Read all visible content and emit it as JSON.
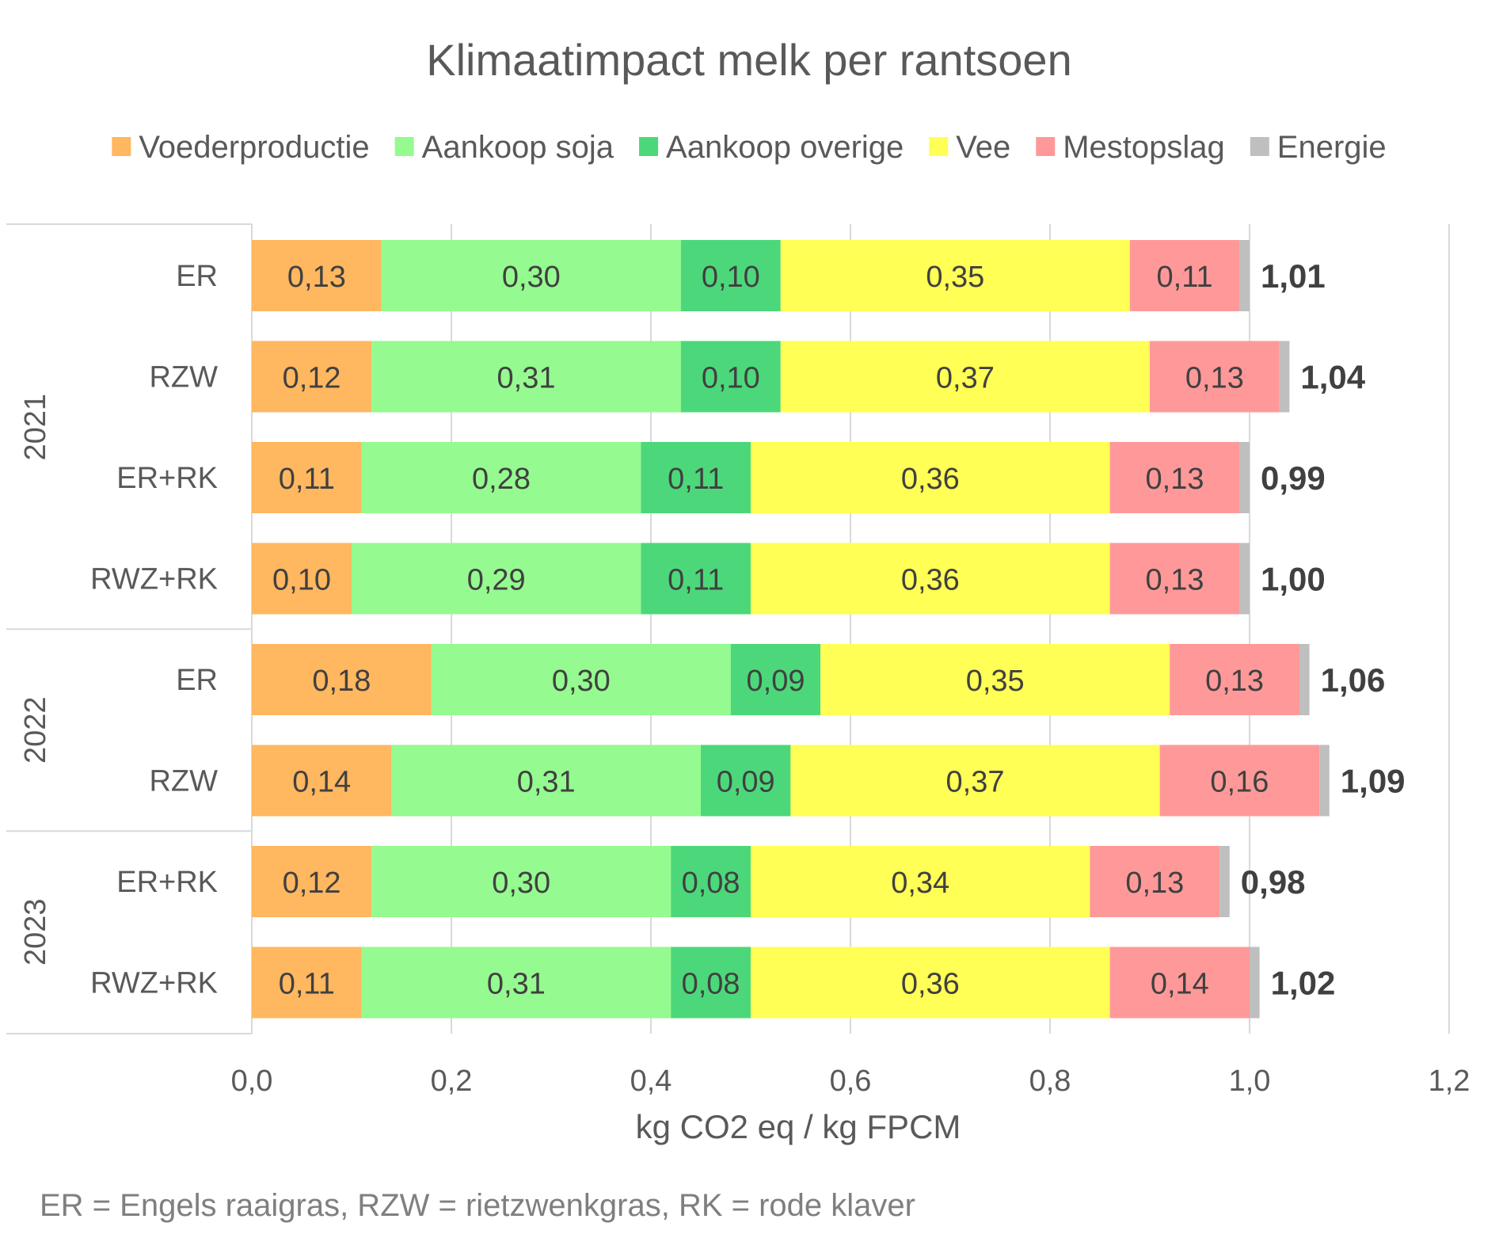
{
  "chart_data": {
    "type": "bar",
    "orientation": "horizontal",
    "stacked": true,
    "title": "Klimaatimpact melk per rantsoen",
    "xlabel": "kg CO2 eq / kg FPCM",
    "ylabel": "",
    "xlim": [
      0,
      1.2
    ],
    "xticks": [
      "0,0",
      "0,2",
      "0,4",
      "0,6",
      "0,8",
      "1,0",
      "1,2"
    ],
    "grid": "vertical",
    "legend_position": "top",
    "groups": [
      {
        "label": "2021",
        "categories": [
          "ER",
          "RZW",
          "ER+RK",
          "RWZ+RK"
        ]
      },
      {
        "label": "2022",
        "categories": [
          "ER",
          "RZW"
        ]
      },
      {
        "label": "2023",
        "categories": [
          "ER+RK",
          "RWZ+RK"
        ]
      }
    ],
    "categories": [
      "2021 ER",
      "2021 RZW",
      "2021 ER+RK",
      "2021 RWZ+RK",
      "2022 ER",
      "2022 RZW",
      "2023 ER+RK",
      "2023 RWZ+RK"
    ],
    "series": [
      {
        "name": "Voederproductie",
        "color": "#FFB760",
        "values": [
          0.13,
          0.12,
          0.11,
          0.1,
          0.18,
          0.14,
          0.12,
          0.11
        ],
        "labels": [
          "0,13",
          "0,12",
          "0,11",
          "0,10",
          "0,18",
          "0,14",
          "0,12",
          "0,11"
        ]
      },
      {
        "name": "Aankoop soja",
        "color": "#95FA8F",
        "values": [
          0.3,
          0.31,
          0.28,
          0.29,
          0.3,
          0.31,
          0.3,
          0.31
        ],
        "labels": [
          "0,30",
          "0,31",
          "0,28",
          "0,29",
          "0,30",
          "0,31",
          "0,30",
          "0,31"
        ]
      },
      {
        "name": "Aankoop overige",
        "color": "#4CD87A",
        "values": [
          0.1,
          0.1,
          0.11,
          0.11,
          0.09,
          0.09,
          0.08,
          0.08
        ],
        "labels": [
          "0,10",
          "0,10",
          "0,11",
          "0,11",
          "0,09",
          "0,09",
          "0,08",
          "0,08"
        ]
      },
      {
        "name": "Vee",
        "color": "#FFFF55",
        "values": [
          0.35,
          0.37,
          0.36,
          0.36,
          0.35,
          0.37,
          0.34,
          0.36
        ],
        "labels": [
          "0,35",
          "0,37",
          "0,36",
          "0,36",
          "0,35",
          "0,37",
          "0,34",
          "0,36"
        ]
      },
      {
        "name": "Mestopslag",
        "color": "#FF9999",
        "values": [
          0.11,
          0.13,
          0.13,
          0.13,
          0.13,
          0.16,
          0.13,
          0.14
        ],
        "labels": [
          "0,11",
          "0,13",
          "0,13",
          "0,13",
          "0,13",
          "0,16",
          "0,13",
          "0,14"
        ]
      },
      {
        "name": "Energie",
        "color": "#BFBFBF",
        "values": [
          0.01,
          0.01,
          0.01,
          0.01,
          0.01,
          0.01,
          0.01,
          0.01
        ],
        "labels": [
          "",
          "",
          "",
          "",
          "",
          "",
          "",
          ""
        ]
      }
    ],
    "totals": [
      1.01,
      1.04,
      0.99,
      1.0,
      1.06,
      1.09,
      0.98,
      1.02
    ],
    "total_labels": [
      "1,01",
      "1,04",
      "0,99",
      "1,00",
      "1,06",
      "1,09",
      "0,98",
      "1,02"
    ]
  },
  "footnote": "ER = Engels raaigras, RZW = rietzwenkgras, RK = rode klaver"
}
